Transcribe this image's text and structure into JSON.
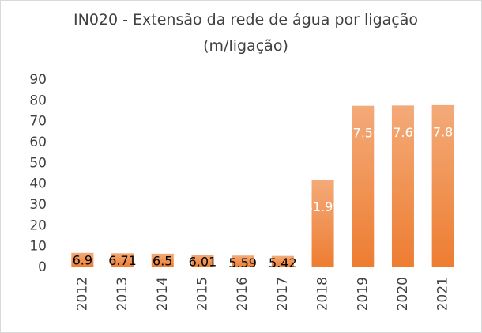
{
  "chart_data": {
    "type": "bar",
    "title": "IN020 - Extensão da rede de água por ligação (m/ligação)",
    "categories": [
      "2012",
      "2013",
      "2014",
      "2015",
      "2016",
      "2017",
      "2018",
      "2019",
      "2020",
      "2021"
    ],
    "values": [
      6.9,
      6.71,
      6.5,
      6.01,
      5.59,
      5.42,
      41.99,
      77.56,
      77.69,
      77.88
    ],
    "color": "#ed7d31",
    "ylim": [
      0,
      90
    ],
    "yticks": [
      0,
      10,
      20,
      30,
      40,
      50,
      60,
      70,
      80,
      90
    ],
    "grid": false
  }
}
